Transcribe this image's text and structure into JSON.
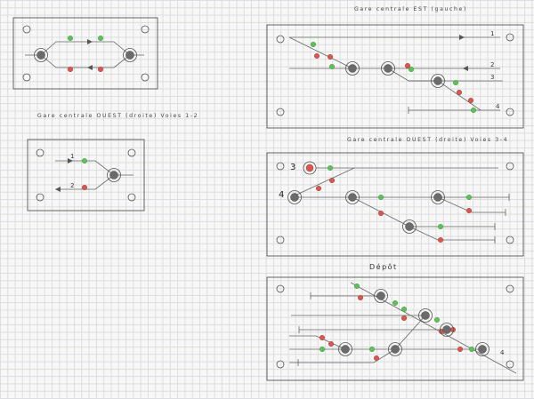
{
  "labels": {
    "gare_est": "Gare centrale EST (gauche)",
    "gare_ouest_12": "Gare centrale OUEST (droite) Voies 1-2",
    "gare_ouest_34": "Gare centrale OUEST (droite) Voies 3-4",
    "depot": "Dépôt"
  },
  "track_numbers": {
    "ouest12_t1": "1",
    "ouest12_t2": "2",
    "est_t1": "1",
    "est_t2": "2",
    "est_t3": "3",
    "est_t4": "4",
    "ouest34_t3": "3",
    "ouest34_t4": "4",
    "depot_t4": "4"
  },
  "colors": {
    "signal_green": "#5fc05a",
    "signal_red": "#d9574f",
    "button": "#6b6b6b"
  }
}
